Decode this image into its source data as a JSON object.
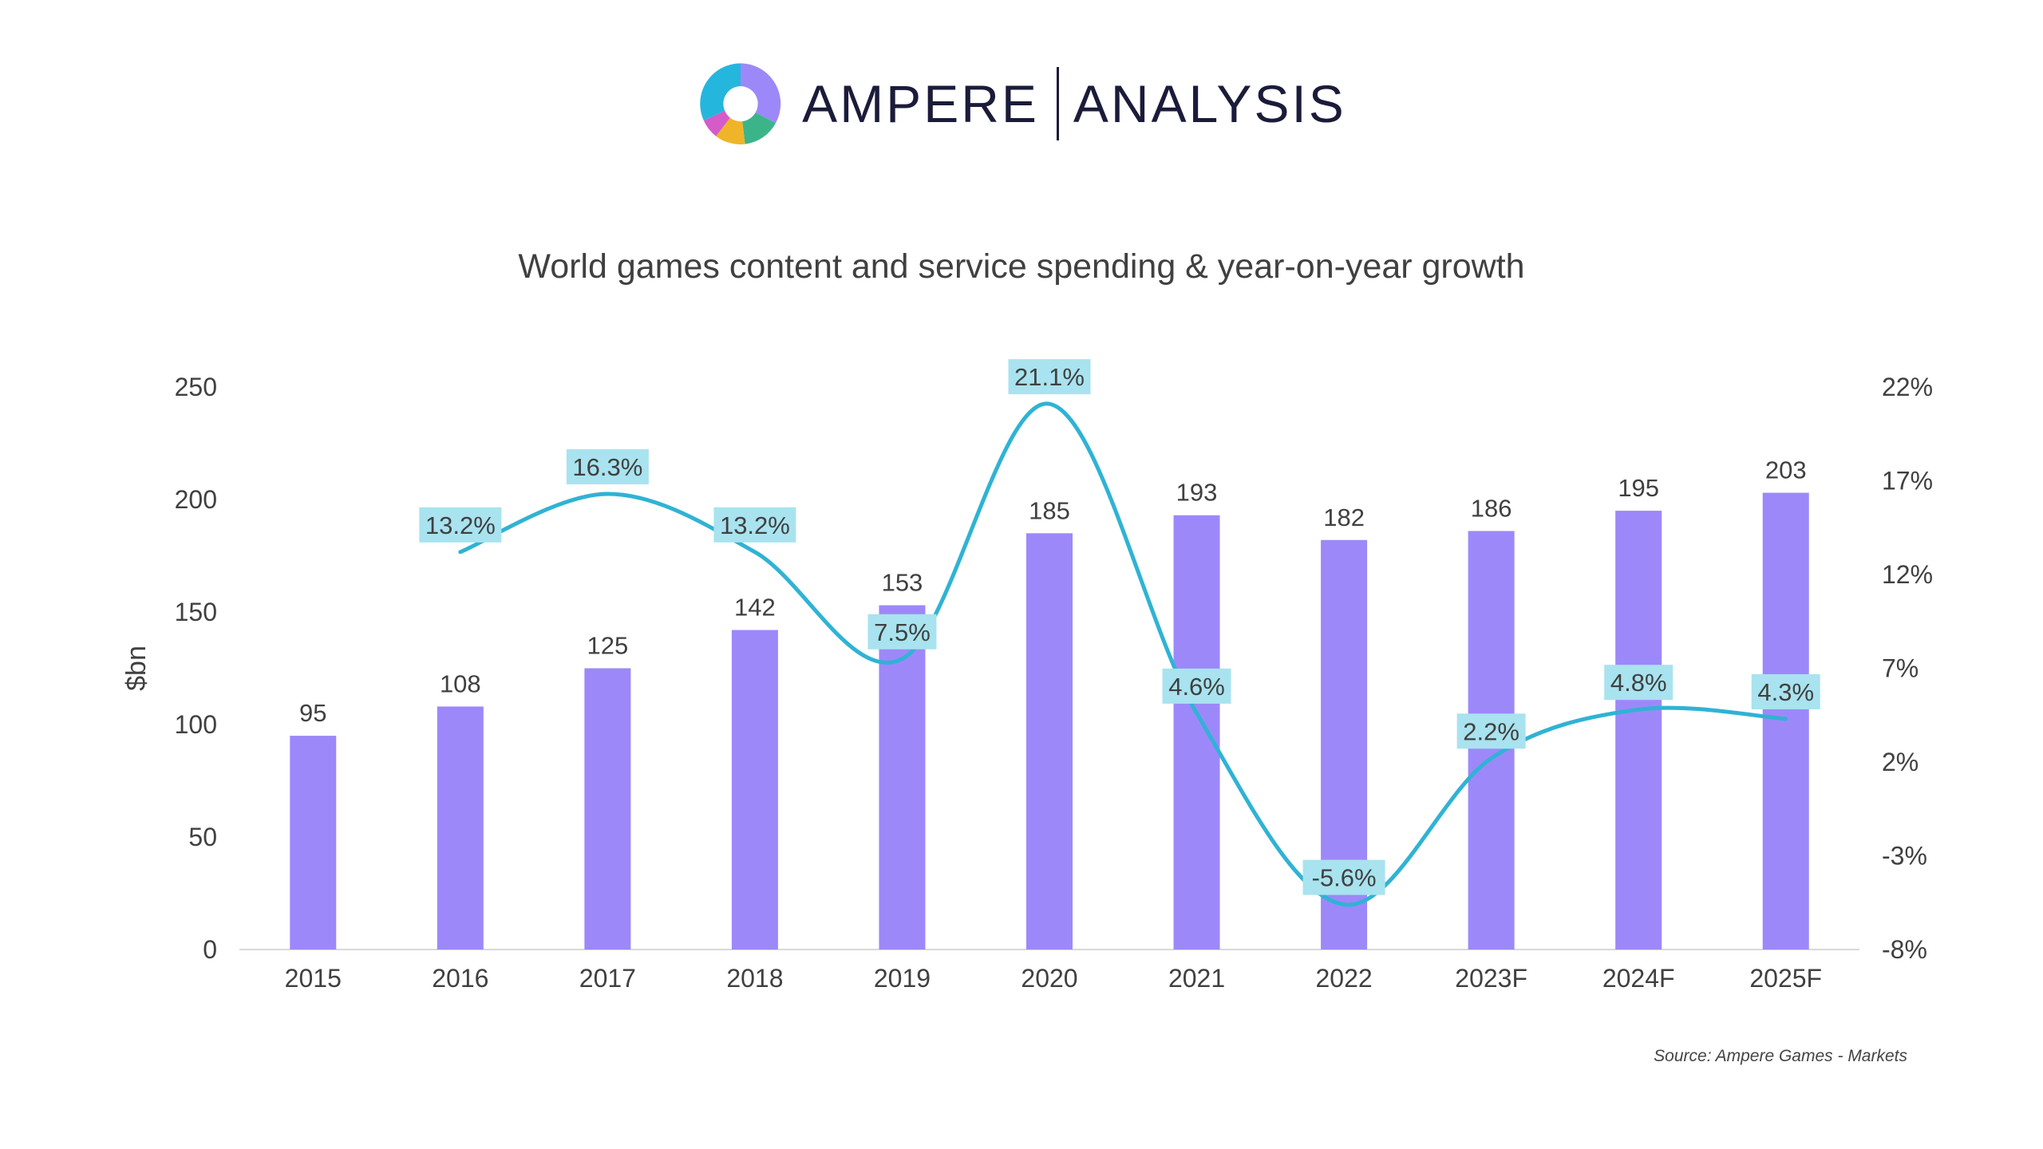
{
  "brand": {
    "name_bold": "AMPERE",
    "name_light": "ANALYSIS"
  },
  "colors": {
    "bar": "#9d88fa",
    "line": "#2fb3d4",
    "label_bg": "#a8e3ef",
    "text": "#404040",
    "axis": "#d9d9d9"
  },
  "source": "Source: Ampere Games - Markets",
  "chart_data": {
    "type": "bar",
    "title": "World games content and service spending & year-on-year growth",
    "categories": [
      "2015",
      "2016",
      "2017",
      "2018",
      "2019",
      "2020",
      "2021",
      "2022",
      "2023F",
      "2024F",
      "2025F"
    ],
    "series": [
      {
        "name": "Spending",
        "axis": "left",
        "type": "bar",
        "values": [
          95,
          108,
          125,
          142,
          153,
          185,
          193,
          182,
          186,
          195,
          203
        ]
      },
      {
        "name": "Year-on-year growth",
        "axis": "right",
        "type": "line",
        "values": [
          null,
          13.2,
          16.3,
          13.2,
          7.5,
          21.1,
          4.6,
          -5.6,
          2.2,
          4.8,
          4.3
        ],
        "labels": [
          null,
          "13.2%",
          "16.3%",
          "13.2%",
          "7.5%",
          "21.1%",
          "4.6%",
          "-5.6%",
          "2.2%",
          "4.8%",
          "4.3%"
        ]
      }
    ],
    "ylabel": "$bn",
    "ylim": [
      0,
      250
    ],
    "yticks": [
      "0",
      "50",
      "100",
      "150",
      "200",
      "250"
    ],
    "y2lim": [
      -8,
      22
    ],
    "y2ticks": [
      "-8%",
      "-3%",
      "2%",
      "7%",
      "12%",
      "17%",
      "22%"
    ],
    "grid": false,
    "legend": "none"
  }
}
